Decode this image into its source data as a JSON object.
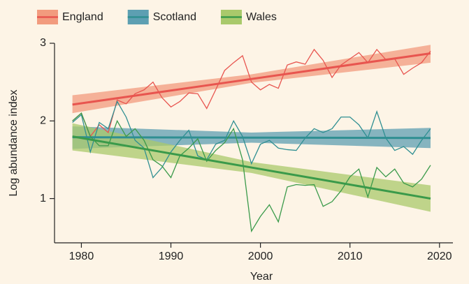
{
  "chart_data": {
    "type": "line",
    "x_label": "Year",
    "y_label": "Log abundance index",
    "x": [
      1979,
      1980,
      1981,
      1982,
      1983,
      1984,
      1985,
      1986,
      1987,
      1988,
      1989,
      1990,
      1991,
      1992,
      1993,
      1994,
      1995,
      1996,
      1997,
      1998,
      1999,
      2000,
      2001,
      2002,
      2003,
      2004,
      2005,
      2006,
      2007,
      2008,
      2009,
      2010,
      2011,
      2012,
      2013,
      2014,
      2015,
      2016,
      2017,
      2018,
      2019
    ],
    "fit_x": [
      1979,
      1999,
      2019
    ],
    "xlim": [
      1977,
      2021.5
    ],
    "xticks": [
      1980,
      1990,
      2000,
      2010,
      2020
    ],
    "ylim": [
      0.43,
      3.0
    ],
    "yticks": [
      1,
      2,
      3
    ],
    "legend": "top",
    "series": [
      {
        "name": "England",
        "color": "#e8554f",
        "band_color": "#f29b7e",
        "values": [
          2.0,
          2.1,
          1.8,
          1.95,
          1.85,
          2.27,
          2.22,
          2.35,
          2.4,
          2.5,
          2.3,
          2.18,
          2.25,
          2.36,
          2.35,
          2.16,
          2.4,
          2.65,
          2.75,
          2.84,
          2.5,
          2.4,
          2.47,
          2.42,
          2.72,
          2.76,
          2.73,
          2.92,
          2.78,
          2.56,
          2.72,
          2.8,
          2.88,
          2.75,
          2.92,
          2.79,
          2.8,
          2.6,
          2.68,
          2.75,
          2.9
        ],
        "fit": [
          2.21,
          2.54,
          2.87
        ],
        "lower": [
          2.1,
          2.49,
          2.75
        ],
        "upper": [
          2.33,
          2.6,
          2.98
        ]
      },
      {
        "name": "Scotland",
        "color": "#2f8f92",
        "band_color": "#5d9fb2",
        "values": [
          1.98,
          2.08,
          1.6,
          1.98,
          1.9,
          2.25,
          2.05,
          1.75,
          1.65,
          1.27,
          1.4,
          1.6,
          1.75,
          1.88,
          1.55,
          1.5,
          1.7,
          1.75,
          2.0,
          1.8,
          1.45,
          1.7,
          1.75,
          1.65,
          1.63,
          1.62,
          1.78,
          1.9,
          1.85,
          1.9,
          2.05,
          2.05,
          1.95,
          1.78,
          2.12,
          1.78,
          1.62,
          1.67,
          1.57,
          1.75,
          1.9
        ],
        "fit": [
          1.79,
          1.785,
          1.78
        ],
        "lower": [
          1.64,
          1.72,
          1.65
        ],
        "upper": [
          1.93,
          1.85,
          1.91
        ]
      },
      {
        "name": "Wales",
        "color": "#3a9a4a",
        "band_color": "#a9c96b",
        "values": [
          2.0,
          2.1,
          1.8,
          1.68,
          1.68,
          2.0,
          1.8,
          1.9,
          1.75,
          1.5,
          1.42,
          1.27,
          1.55,
          1.65,
          1.77,
          1.48,
          1.62,
          1.72,
          1.9,
          1.5,
          0.58,
          0.77,
          0.92,
          0.7,
          1.15,
          1.18,
          1.17,
          1.18,
          0.9,
          0.96,
          1.1,
          1.28,
          1.38,
          1.02,
          1.4,
          1.28,
          1.38,
          1.2,
          1.15,
          1.25,
          1.43
        ],
        "fit": [
          1.8,
          1.4,
          1.0
        ],
        "lower": [
          1.62,
          1.33,
          0.83
        ],
        "upper": [
          1.97,
          1.47,
          1.17
        ]
      }
    ]
  }
}
